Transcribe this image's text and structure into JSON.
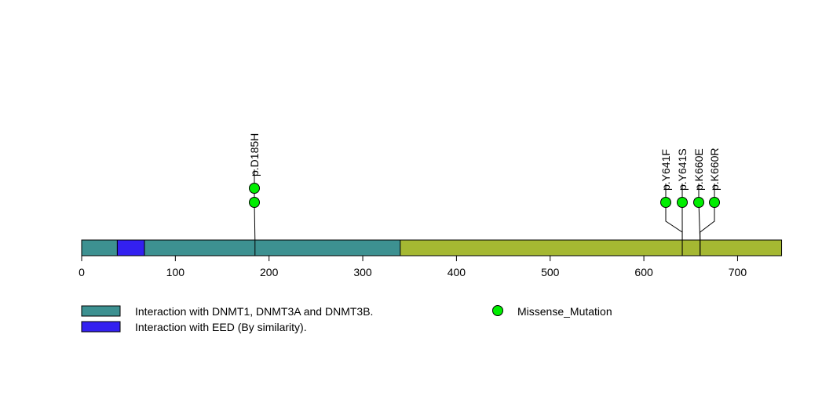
{
  "chart_data": {
    "type": "lollipop",
    "protein_length": 747,
    "xlim": [
      0,
      747
    ],
    "x_ticks": [
      0,
      100,
      200,
      300,
      400,
      500,
      600,
      700
    ],
    "base_color": "#a5b832",
    "domains": [
      {
        "name": "Interaction with DNMT1, DNMT3A and DNMT3B.",
        "start": 0,
        "end": 340,
        "color": "#3d9191"
      },
      {
        "name": "Interaction with EED (By similarity).",
        "start": 38,
        "end": 67,
        "color": "#3320f0"
      }
    ],
    "mutations": [
      {
        "label": "p.D185H",
        "position": 185,
        "count": 2,
        "type": "Missense_Mutation"
      },
      {
        "label": "p.Y641F",
        "position": 641,
        "count": 1,
        "type": "Missense_Mutation"
      },
      {
        "label": "p.Y641S",
        "position": 641,
        "count": 1,
        "type": "Missense_Mutation"
      },
      {
        "label": "p.K660E",
        "position": 660,
        "count": 1,
        "type": "Missense_Mutation"
      },
      {
        "label": "p.K660R",
        "position": 660,
        "count": 1,
        "type": "Missense_Mutation"
      }
    ],
    "legend": {
      "domain_items": [
        "Interaction with DNMT1, DNMT3A and DNMT3B.",
        "Interaction with EED (By similarity)."
      ],
      "mutation_items": [
        {
          "label": "Missense_Mutation",
          "color": "#00ee00"
        }
      ]
    }
  }
}
